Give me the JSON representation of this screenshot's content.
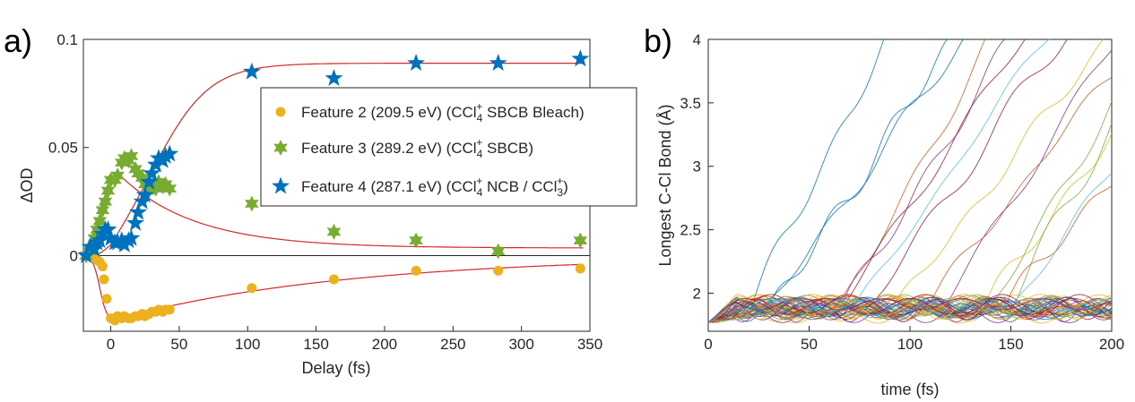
{
  "chart_data": [
    {
      "panel_label": "a)",
      "type": "scatter",
      "xlabel": "Delay (fs)",
      "ylabel": "ΔOD",
      "xlim": [
        -20,
        350
      ],
      "ylim": [
        -0.035,
        0.1
      ],
      "xticks": [
        0,
        50,
        100,
        150,
        200,
        250,
        300,
        350
      ],
      "yticks": [
        0,
        0.05,
        0.1
      ],
      "ytick_labels": [
        "0",
        "0.05",
        "0.1"
      ],
      "zero_line": true,
      "legend_position": "upper-right (inside)",
      "series": [
        {
          "name": "Feature 2 (209.5 eV) (CCl4+ SBCB Bleach)",
          "label_main": "Feature 2 (209.5 eV) (CCl",
          "label_sub": "4",
          "label_sup": "+",
          "label_tail": " SBCB Bleach)",
          "marker": "circle",
          "color": "#EDB120",
          "x": [
            -18,
            -15,
            -12,
            -10,
            -8,
            -6,
            -5,
            -3,
            0,
            3,
            5,
            8,
            10,
            13,
            15,
            18,
            20,
            23,
            25,
            28,
            30,
            33,
            35,
            38,
            40,
            43,
            103,
            163,
            223,
            283,
            343
          ],
          "y": [
            0,
            0,
            -0.001,
            -0.002,
            -0.003,
            -0.005,
            -0.011,
            -0.02,
            -0.029,
            -0.03,
            -0.028,
            -0.029,
            -0.028,
            -0.029,
            -0.029,
            -0.028,
            -0.028,
            -0.027,
            -0.028,
            -0.027,
            -0.026,
            -0.026,
            -0.025,
            -0.026,
            -0.025,
            -0.025,
            -0.015,
            -0.011,
            -0.007,
            -0.007,
            -0.006
          ]
        },
        {
          "name": "Feature 3 (289.2 eV) (CCl4+ SBCB)",
          "label_main": "Feature 3 (289.2 eV) (CCl",
          "label_sub": "4",
          "label_sup": "+",
          "label_tail": " SBCB)",
          "marker": "hexagram",
          "color": "#77AC30",
          "x": [
            -18,
            -15,
            -12,
            -10,
            -8,
            -6,
            -4,
            -2,
            0,
            3,
            5,
            8,
            10,
            13,
            15,
            18,
            20,
            23,
            25,
            28,
            30,
            33,
            35,
            38,
            40,
            43,
            103,
            163,
            223,
            283,
            343
          ],
          "y": [
            0,
            0.002,
            0.008,
            0.012,
            0.016,
            0.021,
            0.025,
            0.03,
            0.035,
            0.035,
            0.037,
            0.043,
            0.045,
            0.044,
            0.046,
            0.04,
            0.038,
            0.036,
            0.033,
            0.03,
            0.032,
            0.031,
            0.034,
            0.032,
            0.033,
            0.031,
            0.024,
            0.011,
            0.007,
            0.002,
            0.007
          ]
        },
        {
          "name": "Feature 4 (287.1 eV) (CCl4+ NCB / CCl3+)",
          "label_main": "Feature 4 (287.1 eV) (CCl",
          "label_sub": "4",
          "label_sup": "+",
          "label_tail": " NCB / CCl",
          "label_sub2": "3",
          "label_sup2": "+",
          "label_end": ")",
          "marker": "pentagram",
          "color": "#0072BD",
          "x": [
            -18,
            -15,
            -12,
            -10,
            -8,
            -6,
            -4,
            -2,
            0,
            3,
            5,
            8,
            10,
            13,
            15,
            18,
            20,
            23,
            25,
            28,
            30,
            33,
            35,
            38,
            40,
            43,
            103,
            163,
            223,
            283,
            343
          ],
          "y": [
            0,
            0.004,
            0.003,
            0.006,
            0.007,
            0.01,
            0.012,
            0.012,
            0.008,
            0.006,
            0.006,
            0.007,
            0.005,
            0.007,
            0.008,
            0.015,
            0.02,
            0.025,
            0.028,
            0.034,
            0.038,
            0.042,
            0.045,
            0.044,
            0.046,
            0.047,
            0.085,
            0.082,
            0.089,
            0.089,
            0.091
          ]
        }
      ],
      "fit_color": "#D62728"
    },
    {
      "panel_label": "b)",
      "type": "line",
      "xlabel": "time (fs)",
      "ylabel": "Longest C-Cl Bond (Å)",
      "xlim": [
        0,
        200
      ],
      "ylim": [
        1.7,
        4
      ],
      "xticks": [
        0,
        50,
        100,
        150,
        200
      ],
      "yticks": [
        2,
        2.5,
        3,
        3.5,
        4
      ],
      "ytick_labels": [
        "2",
        "2.5",
        "3",
        "3.5",
        "4"
      ],
      "start_value": 1.77,
      "series_count": 60,
      "description": "ensemble of trajectories starting at 1.77 Å; most oscillate between 1.8 and 2.0 Å, a subset dissociates past 4 Å"
    }
  ]
}
